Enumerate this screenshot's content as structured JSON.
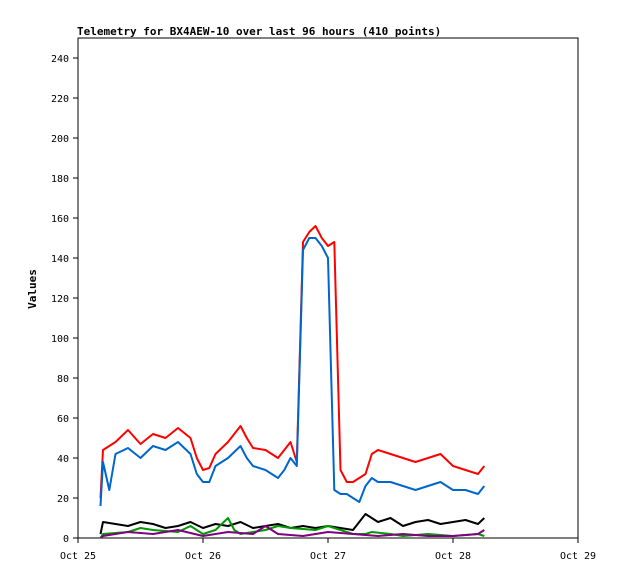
{
  "chart_data": {
    "type": "line",
    "title": "Telemetry for BX4AEW-10 over last 96 hours (410 points)",
    "xlabel": "",
    "ylabel": "Values",
    "xlim": [
      "Oct 25",
      "Oct 29"
    ],
    "ylim": [
      0,
      250
    ],
    "x_ticks": [
      "Oct 25",
      "Oct 26",
      "Oct 27",
      "Oct 28",
      "Oct 29"
    ],
    "y_ticks": [
      0,
      20,
      40,
      60,
      80,
      100,
      120,
      140,
      160,
      180,
      200,
      220,
      240
    ],
    "grid": false,
    "legend": "none",
    "x_unit": "days since Oct 25 00:00",
    "series": [
      {
        "color": "#ff0000",
        "x": [
          0.18,
          0.2,
          0.3,
          0.4,
          0.5,
          0.6,
          0.7,
          0.8,
          0.9,
          0.95,
          1.0,
          1.05,
          1.1,
          1.2,
          1.3,
          1.35,
          1.4,
          1.5,
          1.6,
          1.65,
          1.7,
          1.75,
          1.8,
          1.85,
          1.9,
          1.95,
          2.0,
          2.05,
          2.1,
          2.15,
          2.2,
          2.25,
          2.3,
          2.35,
          2.4,
          2.5,
          2.6,
          2.7,
          2.8,
          2.9,
          3.0,
          3.1,
          3.2,
          3.25
        ],
        "y": [
          20,
          44,
          48,
          54,
          47,
          52,
          50,
          55,
          50,
          40,
          34,
          35,
          42,
          48,
          56,
          50,
          45,
          44,
          40,
          44,
          48,
          38,
          148,
          153,
          156,
          150,
          146,
          148,
          34,
          28,
          28,
          30,
          32,
          42,
          44,
          42,
          40,
          38,
          40,
          42,
          36,
          34,
          32,
          36
        ]
      },
      {
        "color": "#0066cc",
        "x": [
          0.18,
          0.2,
          0.25,
          0.3,
          0.4,
          0.5,
          0.6,
          0.7,
          0.8,
          0.9,
          0.95,
          1.0,
          1.05,
          1.1,
          1.2,
          1.3,
          1.35,
          1.4,
          1.5,
          1.6,
          1.65,
          1.7,
          1.75,
          1.8,
          1.85,
          1.9,
          1.95,
          2.0,
          2.05,
          2.1,
          2.15,
          2.2,
          2.25,
          2.3,
          2.35,
          2.4,
          2.5,
          2.6,
          2.7,
          2.8,
          2.9,
          3.0,
          3.1,
          3.2,
          3.25
        ],
        "y": [
          16,
          38,
          24,
          42,
          45,
          40,
          46,
          44,
          48,
          42,
          32,
          28,
          28,
          36,
          40,
          46,
          40,
          36,
          34,
          30,
          34,
          40,
          36,
          144,
          150,
          150,
          146,
          140,
          24,
          22,
          22,
          20,
          18,
          26,
          30,
          28,
          28,
          26,
          24,
          26,
          28,
          24,
          24,
          22,
          26
        ]
      },
      {
        "color": "#000000",
        "x": [
          0.18,
          0.2,
          0.3,
          0.4,
          0.5,
          0.6,
          0.7,
          0.8,
          0.9,
          1.0,
          1.1,
          1.2,
          1.3,
          1.4,
          1.5,
          1.6,
          1.7,
          1.8,
          1.9,
          2.0,
          2.1,
          2.2,
          2.3,
          2.4,
          2.5,
          2.6,
          2.7,
          2.8,
          2.9,
          3.0,
          3.1,
          3.2,
          3.25
        ],
        "y": [
          2,
          8,
          7,
          6,
          8,
          7,
          5,
          6,
          8,
          5,
          7,
          6,
          8,
          5,
          6,
          7,
          5,
          6,
          5,
          6,
          5,
          4,
          12,
          8,
          10,
          6,
          8,
          9,
          7,
          8,
          9,
          7,
          10
        ]
      },
      {
        "color": "#009900",
        "x": [
          0.18,
          0.2,
          0.4,
          0.5,
          0.6,
          0.8,
          0.9,
          1.0,
          1.1,
          1.2,
          1.25,
          1.3,
          1.4,
          1.5,
          1.6,
          1.7,
          1.9,
          2.0,
          2.1,
          2.2,
          2.3,
          2.35,
          2.5,
          2.6,
          2.8,
          3.0,
          3.2,
          3.25
        ],
        "y": [
          0,
          2,
          3,
          5,
          4,
          3,
          6,
          2,
          4,
          10,
          4,
          2,
          3,
          4,
          6,
          5,
          4,
          6,
          4,
          2,
          2,
          3,
          2,
          1,
          2,
          1,
          2,
          1
        ]
      },
      {
        "color": "#800080",
        "x": [
          0.18,
          0.2,
          0.4,
          0.6,
          0.8,
          1.0,
          1.2,
          1.4,
          1.5,
          1.6,
          1.8,
          2.0,
          2.2,
          2.4,
          2.6,
          2.8,
          3.0,
          3.2,
          3.25
        ],
        "y": [
          0,
          1,
          3,
          2,
          4,
          1,
          3,
          2,
          6,
          2,
          1,
          3,
          2,
          1,
          2,
          1,
          1,
          2,
          4
        ]
      }
    ]
  }
}
